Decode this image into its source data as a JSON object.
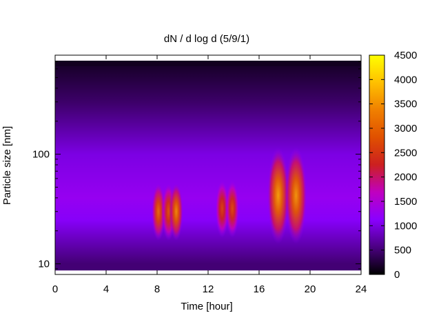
{
  "chart_data": {
    "type": "heatmap",
    "title": "dN / d log d (5/9/1)",
    "xlabel": "Time [hour]",
    "ylabel": "Particle size [nm]",
    "xlim": [
      0,
      24
    ],
    "ylim": [
      8,
      800
    ],
    "y_scale": "log",
    "x_ticks": [
      "0",
      "4",
      "8",
      "12",
      "16",
      "20",
      "24"
    ],
    "y_ticks": [
      "10",
      "100"
    ],
    "colorbar": {
      "range": [
        0,
        4500
      ],
      "ticks": [
        "0",
        "500",
        "1000",
        "1500",
        "2000",
        "2500",
        "3000",
        "3500",
        "4000",
        "4500"
      ],
      "colors": [
        "#000000",
        "#4b0082",
        "#8a00ff",
        "#c000c0",
        "#cc2020",
        "#e05000",
        "#f08000",
        "#ffc000",
        "#ffff00"
      ]
    },
    "grid": false,
    "legend": "colorbar-right",
    "background_concentration": [
      {
        "d": 10,
        "value": 500
      },
      {
        "d": 25,
        "value": 1100
      },
      {
        "d": 40,
        "value": 1250
      },
      {
        "d": 100,
        "value": 1000
      },
      {
        "d": 300,
        "value": 450
      },
      {
        "d": 700,
        "value": 150
      }
    ],
    "peaks": [
      {
        "x": 8.1,
        "d": 30,
        "value": 3200
      },
      {
        "x": 8.9,
        "d": 30,
        "value": 2900
      },
      {
        "x": 9.5,
        "d": 30,
        "value": 3500
      },
      {
        "x": 13.1,
        "d": 32,
        "value": 2700
      },
      {
        "x": 13.9,
        "d": 32,
        "value": 2800
      },
      {
        "x": 17.5,
        "d": 42,
        "value": 3700
      },
      {
        "x": 18.9,
        "d": 42,
        "value": 3600
      }
    ]
  }
}
